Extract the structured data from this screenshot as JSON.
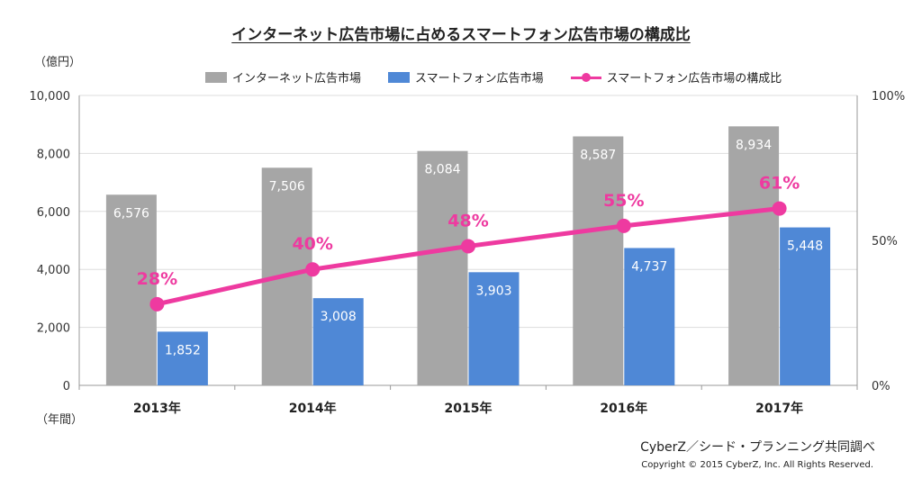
{
  "title": "インターネット広告市場に占めるスマートフォン広告市場の構成比",
  "units": {
    "left": "（億円）",
    "bottom": "（年間）"
  },
  "colors": {
    "internet": "#a6a6a6",
    "smartphone": "#4f88d6",
    "ratio": "#ee3aa0",
    "grid": "#dddddd"
  },
  "chart_data": {
    "type": "bar",
    "categories": [
      "2013年",
      "2014年",
      "2015年",
      "2016年",
      "2017年"
    ],
    "series": [
      {
        "name": "インターネット広告市場",
        "values": [
          6576,
          7506,
          8084,
          8587,
          8934
        ],
        "labels": [
          "6,576",
          "7,506",
          "8,084",
          "8,587",
          "8,934"
        ]
      },
      {
        "name": "スマートフォン広告市場",
        "values": [
          1852,
          3008,
          3903,
          4737,
          5448
        ],
        "labels": [
          "1,852",
          "3,008",
          "3,903",
          "4,737",
          "5,448"
        ]
      }
    ],
    "line_series": {
      "name": "スマートフォン広告市場の構成比",
      "values": [
        28,
        40,
        48,
        55,
        61
      ],
      "labels": [
        "28%",
        "40%",
        "48%",
        "55%",
        "61%"
      ]
    },
    "ylim": [
      0,
      10000
    ],
    "yticks": [
      "0",
      "2,000",
      "4,000",
      "6,000",
      "8,000",
      "10,000"
    ],
    "y2lim": [
      0,
      100
    ],
    "y2ticks": [
      "0%",
      "50%",
      "100%"
    ],
    "legend_position": "top"
  },
  "footer": {
    "source": "CyberZ／シード・プランニング共同調べ",
    "copyright": "Copyright © 2015 CyberZ, Inc.  All Rights Reserved."
  }
}
